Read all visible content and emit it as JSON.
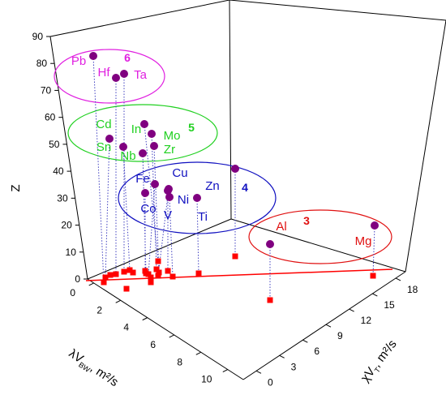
{
  "chart_data": {
    "type": "scatter3d",
    "axes": {
      "x": {
        "label_main": "λV",
        "label_sub": "BW",
        "label_unit": ", m²/s",
        "ticks": [
          "0",
          "2",
          "4",
          "6",
          "8",
          "10"
        ]
      },
      "y": {
        "label_main": "χV",
        "label_sub": "T",
        "label_unit": ", m²/s",
        "ticks": [
          "0",
          "3",
          "6",
          "9",
          "12",
          "15",
          "18"
        ]
      },
      "z": {
        "label": "Z",
        "ticks": [
          "0",
          "10",
          "20",
          "30",
          "40",
          "50",
          "60",
          "70",
          "80",
          "90"
        ]
      }
    },
    "colors": {
      "point": "#800080",
      "projection": "#ff0000",
      "dropline": "#4040c0",
      "fit_line": "#ff0000"
    },
    "groups": [
      {
        "id": "6",
        "color": "#e020e0"
      },
      {
        "id": "5",
        "color": "#20d020"
      },
      {
        "id": "4",
        "color": "#1010c0"
      },
      {
        "id": "3",
        "color": "#e01010"
      }
    ],
    "points": [
      {
        "label": "Pb",
        "z": 82,
        "group": "6"
      },
      {
        "label": "Hf",
        "z": 72,
        "group": "6"
      },
      {
        "label": "Ta",
        "z": 73,
        "group": "6"
      },
      {
        "label": "Cd",
        "z": 48,
        "group": "5"
      },
      {
        "label": "In",
        "z": 49,
        "group": "5"
      },
      {
        "label": "Sn",
        "z": 50,
        "group": "5"
      },
      {
        "label": "Mo",
        "z": 42,
        "group": "5"
      },
      {
        "label": "Nb",
        "z": 41,
        "group": "5"
      },
      {
        "label": "Zr",
        "z": 40,
        "group": "5"
      },
      {
        "label": "Fe",
        "z": 26,
        "group": "4"
      },
      {
        "label": "Cu",
        "z": 29,
        "group": "4"
      },
      {
        "label": "Zn",
        "z": 30,
        "group": "4"
      },
      {
        "label": "Co",
        "z": 27,
        "group": "4"
      },
      {
        "label": "Ni",
        "z": 28,
        "group": "4"
      },
      {
        "label": "V",
        "z": 23,
        "group": "4"
      },
      {
        "label": "Ti",
        "z": 22,
        "group": "4"
      },
      {
        "label": "Al",
        "z": 13,
        "group": "3"
      },
      {
        "label": "Mg",
        "z": 12,
        "group": "3"
      }
    ]
  }
}
